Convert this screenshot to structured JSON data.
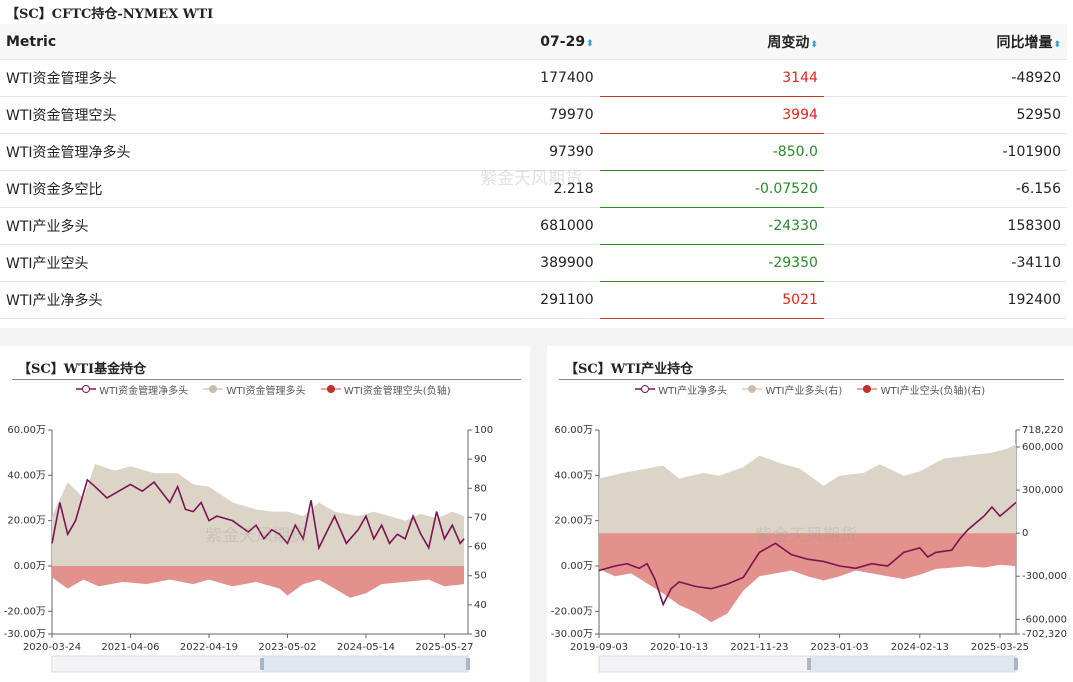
{
  "table": {
    "title": "【SC】CFTC持仓-NYMEX WTI",
    "headers": [
      "Metric",
      "07-29",
      "周变动",
      "同比增量"
    ],
    "rows": [
      {
        "metric": "WTI资金管理多头",
        "value": "177400",
        "change": "3144",
        "yoy": "-48920",
        "dir": "up"
      },
      {
        "metric": "WTI资金管理空头",
        "value": "79970",
        "change": "3994",
        "yoy": "52950",
        "dir": "up"
      },
      {
        "metric": "WTI资金管理净多头",
        "value": "97390",
        "change": "-850.0",
        "yoy": "-101900",
        "dir": "dn"
      },
      {
        "metric": "WTI资金多空比",
        "value": "2.218",
        "change": "-0.07520",
        "yoy": "-6.156",
        "dir": "dn"
      },
      {
        "metric": "WTI产业多头",
        "value": "681000",
        "change": "-24330",
        "yoy": "158300",
        "dir": "dn"
      },
      {
        "metric": "WTI产业空头",
        "value": "389900",
        "change": "-29350",
        "yoy": "-34110",
        "dir": "dn"
      },
      {
        "metric": "WTI产业净多头",
        "value": "291100",
        "change": "5021",
        "yoy": "192400",
        "dir": "up"
      }
    ],
    "watermark": "紫金天风期货"
  },
  "colors": {
    "net": "#7b1450",
    "long": "#d8cfc3",
    "short": "#e08a85",
    "red": "#e0261b",
    "green": "#2a8a2a",
    "sort": "#2a9fd8"
  },
  "chart_data": [
    {
      "type": "area",
      "title": "【SC】WTI基金持仓",
      "watermark": "紫金天风期货",
      "legend": [
        "WTI资金管理净多头",
        "WTI资金管理多头",
        "WTI资金管理空头(负轴)"
      ],
      "legend_position": "top",
      "left_axis": {
        "ticks": [
          "60.00万",
          "40.00万",
          "20.00万",
          "0.00万",
          "-20.00万",
          "-30.00万"
        ],
        "tick_values": [
          60,
          40,
          20,
          0,
          -20,
          -30
        ],
        "range": [
          -30,
          60
        ]
      },
      "right_axis": {
        "ticks": [
          "100",
          "90",
          "80",
          "70",
          "60",
          "50",
          "40",
          "30"
        ],
        "range": [
          30,
          100
        ]
      },
      "x_ticks": [
        "2020-03-24",
        "2021-04-06",
        "2022-04-19",
        "2023-05-02",
        "2024-05-14",
        "2025-05-27"
      ],
      "x_range": [
        0,
        5.3
      ],
      "series": [
        {
          "name": "WTI资金管理多头",
          "unit": "万",
          "x": [
            0,
            0.2,
            0.4,
            0.55,
            0.8,
            1.0,
            1.3,
            1.6,
            1.8,
            2.0,
            2.3,
            2.6,
            2.8,
            3.0,
            3.2,
            3.4,
            3.6,
            3.9,
            4.1,
            4.3,
            4.5,
            4.7,
            4.9,
            5.1,
            5.25
          ],
          "values": [
            22,
            37,
            30,
            45,
            42,
            44,
            41,
            41,
            36,
            35,
            28,
            25,
            24,
            24,
            22,
            28,
            24,
            22,
            24,
            22,
            20,
            23,
            21,
            24,
            22
          ]
        },
        {
          "name": "WTI资金管理净多头",
          "unit": "万",
          "x": [
            0,
            0.1,
            0.2,
            0.3,
            0.45,
            0.55,
            0.7,
            0.8,
            1.0,
            1.15,
            1.3,
            1.5,
            1.6,
            1.7,
            1.8,
            1.9,
            2.0,
            2.1,
            2.3,
            2.5,
            2.6,
            2.7,
            2.8,
            2.9,
            3.0,
            3.1,
            3.2,
            3.3,
            3.4,
            3.5,
            3.6,
            3.75,
            3.9,
            4.0,
            4.1,
            4.2,
            4.3,
            4.4,
            4.5,
            4.6,
            4.7,
            4.8,
            4.9,
            5.0,
            5.1,
            5.2,
            5.25
          ],
          "values": [
            10,
            28,
            14,
            20,
            38,
            35,
            30,
            32,
            36,
            33,
            37,
            28,
            35,
            25,
            24,
            28,
            20,
            22,
            20,
            15,
            18,
            12,
            16,
            14,
            10,
            18,
            12,
            29,
            8,
            15,
            22,
            10,
            16,
            22,
            12,
            18,
            10,
            14,
            12,
            22,
            14,
            8,
            24,
            12,
            18,
            10,
            12
          ]
        },
        {
          "name": "WTI资金管理空头(负轴)",
          "unit": "万",
          "x": [
            0,
            0.2,
            0.4,
            0.6,
            0.9,
            1.2,
            1.5,
            1.8,
            2.0,
            2.3,
            2.6,
            2.9,
            3.0,
            3.2,
            3.4,
            3.6,
            3.8,
            4.0,
            4.2,
            4.5,
            4.8,
            5.0,
            5.25
          ],
          "values": [
            -5,
            -10,
            -6,
            -9,
            -7,
            -8,
            -6,
            -8,
            -6,
            -9,
            -7,
            -10,
            -13,
            -8,
            -6,
            -10,
            -14,
            -12,
            -8,
            -7,
            -6,
            -9,
            -8
          ]
        }
      ]
    },
    {
      "type": "area",
      "title": "【SC】WTI产业持仓",
      "watermark": "紫金天风期货",
      "legend": [
        "WTI产业净多头",
        "WTI产业多头(右)",
        "WTI产业空头(负轴)(右)"
      ],
      "legend_position": "top",
      "left_axis": {
        "ticks": [
          "60.00万",
          "40.00万",
          "20.00万",
          "0.00万",
          "-20.00万",
          "-30.00万"
        ],
        "tick_values": [
          60,
          40,
          20,
          0,
          -20,
          -30
        ],
        "range": [
          -30,
          60
        ]
      },
      "right_axis": {
        "ticks": [
          "718,220",
          "600,000",
          "300,000",
          "0",
          "-300,000",
          "-600,000",
          "-702,320"
        ],
        "tick_values": [
          718220,
          600000,
          300000,
          0,
          -300000,
          -600000,
          -702320
        ],
        "range": [
          -702320,
          718220
        ]
      },
      "x_ticks": [
        "2019-09-03",
        "2020-10-13",
        "2021-11-23",
        "2023-01-03",
        "2024-02-13",
        "2025-03-25"
      ],
      "x_range": [
        0,
        5.2
      ],
      "series": [
        {
          "name": "WTI产业多头(右)",
          "x": [
            0,
            0.3,
            0.6,
            0.8,
            1.0,
            1.3,
            1.5,
            1.8,
            2.0,
            2.3,
            2.5,
            2.8,
            3.0,
            3.3,
            3.5,
            3.8,
            4.0,
            4.3,
            4.6,
            4.9,
            5.1,
            5.2
          ],
          "values": [
            380000,
            420000,
            450000,
            470000,
            380000,
            420000,
            400000,
            460000,
            540000,
            480000,
            450000,
            330000,
            400000,
            420000,
            480000,
            400000,
            430000,
            520000,
            540000,
            560000,
            590000,
            620000
          ]
        },
        {
          "name": "WTI产业空头(负轴)(右)",
          "x": [
            0,
            0.2,
            0.4,
            0.6,
            0.8,
            1.0,
            1.2,
            1.4,
            1.6,
            1.8,
            2.0,
            2.2,
            2.4,
            2.6,
            2.8,
            3.0,
            3.2,
            3.4,
            3.6,
            3.8,
            4.0,
            4.2,
            4.4,
            4.6,
            4.8,
            5.0,
            5.2
          ],
          "values": [
            -250000,
            -300000,
            -280000,
            -350000,
            -420000,
            -500000,
            -550000,
            -620000,
            -560000,
            -400000,
            -300000,
            -280000,
            -260000,
            -300000,
            -330000,
            -300000,
            -260000,
            -280000,
            -300000,
            -320000,
            -290000,
            -250000,
            -240000,
            -230000,
            -240000,
            -220000,
            -230000
          ]
        },
        {
          "name": "WTI产业净多头",
          "unit": "万",
          "x": [
            0,
            0.2,
            0.35,
            0.5,
            0.6,
            0.7,
            0.8,
            0.9,
            1.0,
            1.2,
            1.4,
            1.6,
            1.8,
            2.0,
            2.2,
            2.4,
            2.6,
            2.8,
            3.0,
            3.2,
            3.4,
            3.6,
            3.8,
            4.0,
            4.1,
            4.2,
            4.4,
            4.5,
            4.6,
            4.8,
            4.9,
            5.0,
            5.1,
            5.2
          ],
          "values": [
            -2,
            0,
            1,
            -1,
            1,
            -6,
            -17,
            -10,
            -7,
            -9,
            -10,
            -8,
            -5,
            6,
            10,
            5,
            3,
            2,
            0,
            -1,
            1,
            0,
            6,
            8,
            4,
            6,
            7,
            12,
            16,
            22,
            26,
            22,
            25,
            28
          ]
        }
      ]
    }
  ]
}
